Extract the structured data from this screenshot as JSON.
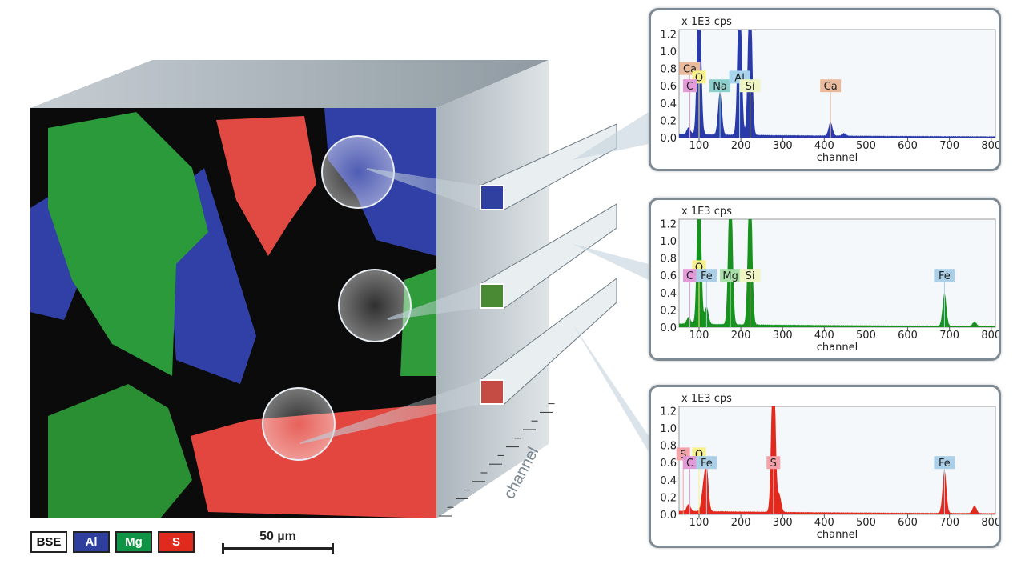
{
  "legend": [
    {
      "label": "BSE",
      "color": "#ffffff",
      "text": "#111111"
    },
    {
      "label": "Al",
      "color": "#2e3f9e",
      "text": "#ffffff"
    },
    {
      "label": "Mg",
      "color": "#0f9345",
      "text": "#ffffff"
    },
    {
      "label": "S",
      "color": "#df2a1d",
      "text": "#ffffff"
    }
  ],
  "scale_bar": "50 µm",
  "cube_axis_label": "channel",
  "chart_data": [
    {
      "type": "area",
      "color": "#2a3aa8",
      "ylabel": "x 1E3 cps",
      "xlabel": "channel",
      "xlim": [
        52,
        810
      ],
      "ylim": [
        0,
        1.25
      ],
      "xticks": [
        100,
        200,
        300,
        400,
        500,
        600,
        700,
        800
      ],
      "yticks": [
        0.0,
        0.2,
        0.4,
        0.6,
        0.8,
        1.0,
        1.2
      ],
      "peaks": [
        [
          75,
          0.08
        ],
        [
          100,
          2.0
        ],
        [
          150,
          0.5
        ],
        [
          197,
          2.0
        ],
        [
          222,
          2.0
        ],
        [
          415,
          0.16
        ],
        [
          447,
          0.03
        ]
      ],
      "labels": [
        {
          "text": "Ca",
          "x": 78,
          "y": 0.8
        },
        {
          "text": "O",
          "x": 100,
          "y": 0.7
        },
        {
          "text": "C",
          "x": 78,
          "y": 0.6
        },
        {
          "text": "Na",
          "x": 150,
          "y": 0.6
        },
        {
          "text": "Al",
          "x": 197,
          "y": 0.7
        },
        {
          "text": "Si",
          "x": 222,
          "y": 0.6
        },
        {
          "text": "Ca",
          "x": 415,
          "y": 0.6
        }
      ]
    },
    {
      "type": "area",
      "color": "#17921e",
      "ylabel": "x 1E3 cps",
      "xlabel": "channel",
      "xlim": [
        52,
        810
      ],
      "ylim": [
        0,
        1.25
      ],
      "xticks": [
        100,
        200,
        300,
        400,
        500,
        600,
        700,
        800
      ],
      "yticks": [
        0.0,
        0.2,
        0.4,
        0.6,
        0.8,
        1.0,
        1.2
      ],
      "peaks": [
        [
          75,
          0.08
        ],
        [
          100,
          2.0
        ],
        [
          118,
          0.2
        ],
        [
          175,
          2.0
        ],
        [
          222,
          2.0
        ],
        [
          688,
          0.38
        ],
        [
          760,
          0.05
        ]
      ],
      "labels": [
        {
          "text": "O",
          "x": 100,
          "y": 0.7
        },
        {
          "text": "C",
          "x": 78,
          "y": 0.6
        },
        {
          "text": "Fe",
          "x": 118,
          "y": 0.6
        },
        {
          "text": "Mg",
          "x": 175,
          "y": 0.6
        },
        {
          "text": "Si",
          "x": 222,
          "y": 0.6
        },
        {
          "text": "Fe",
          "x": 688,
          "y": 0.6
        }
      ]
    },
    {
      "type": "area",
      "color": "#e2291c",
      "ylabel": "x 1E3 cps",
      "xlabel": "channel",
      "xlim": [
        52,
        810
      ],
      "ylim": [
        0,
        1.25
      ],
      "xticks": [
        100,
        200,
        300,
        400,
        500,
        600,
        700,
        800
      ],
      "yticks": [
        0.0,
        0.2,
        0.4,
        0.6,
        0.8,
        1.0,
        1.2
      ],
      "peaks": [
        [
          75,
          0.08
        ],
        [
          110,
          0.24
        ],
        [
          118,
          0.5
        ],
        [
          278,
          2.0
        ],
        [
          292,
          0.2
        ],
        [
          688,
          0.5
        ],
        [
          760,
          0.09
        ]
      ],
      "labels": [
        {
          "text": "S",
          "x": 62,
          "y": 0.7
        },
        {
          "text": "O",
          "x": 100,
          "y": 0.7
        },
        {
          "text": "C",
          "x": 78,
          "y": 0.6
        },
        {
          "text": "Fe",
          "x": 118,
          "y": 0.6
        },
        {
          "text": "S",
          "x": 278,
          "y": 0.6
        },
        {
          "text": "Fe",
          "x": 688,
          "y": 0.6
        }
      ]
    }
  ],
  "label_colors": {
    "C": "#e39ad9",
    "O": "#f5ef8c",
    "Ca": "#e9bb9c",
    "Na": "#8dcfcc",
    "Al": "#a9d4ee",
    "Si": "#eef4c4",
    "Fe": "#abcfe6",
    "Mg": "#a7e0a8",
    "S": "#f5a3ab"
  }
}
